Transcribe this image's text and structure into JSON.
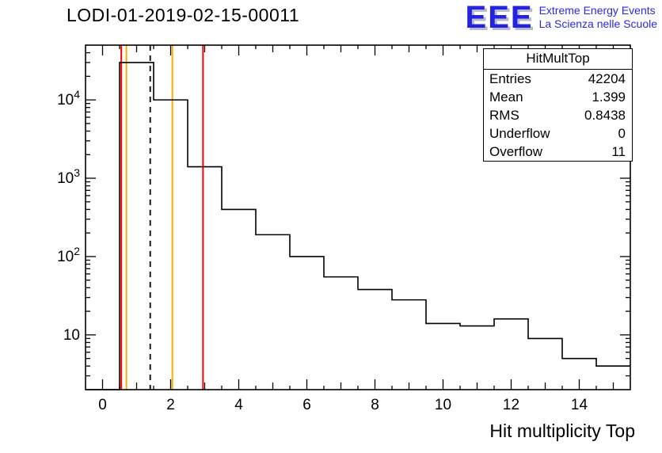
{
  "title": "LODI-01-2019-02-15-00011",
  "xlabel": "Hit multiplicity Top",
  "logo": {
    "eee": "EEE",
    "line1": "Extreme Energy Events",
    "line2": "La Scienza nelle Scuole",
    "color": "#2a2ae0"
  },
  "stats": {
    "header": "HitMultTop",
    "rows": [
      {
        "label": "Entries",
        "value": "42204"
      },
      {
        "label": "Mean",
        "value": "1.399"
      },
      {
        "label": "RMS",
        "value": "0.8438"
      },
      {
        "label": "Underflow",
        "value": "0"
      },
      {
        "label": "Overflow",
        "value": "11"
      }
    ]
  },
  "chart_data": {
    "type": "bar",
    "title": "LODI-01-2019-02-15-00011",
    "xlabel": "Hit multiplicity Top",
    "ylabel": "",
    "yscale": "log",
    "xlim": [
      -0.5,
      15.5
    ],
    "ylim": [
      2,
      50000
    ],
    "bin_width": 1,
    "bin_centers": [
      0,
      1,
      2,
      3,
      4,
      5,
      6,
      7,
      8,
      9,
      10,
      11,
      12,
      13,
      14,
      15
    ],
    "values": [
      0,
      30000,
      10000,
      1400,
      400,
      190,
      100,
      55,
      38,
      28,
      14,
      13,
      16,
      9,
      5,
      4
    ],
    "hist_color": "#000000",
    "x_ticks": {
      "values": [
        0,
        2,
        4,
        6,
        8,
        10,
        12,
        14
      ],
      "labels": [
        "0",
        "2",
        "4",
        "6",
        "8",
        "10",
        "12",
        "14"
      ]
    },
    "y_ticks": {
      "values": [
        10,
        100,
        1000,
        10000
      ],
      "labels": [
        "10",
        "10^2",
        "10^3",
        "10^4"
      ]
    },
    "vlines": [
      {
        "x": 0.55,
        "color": "#ff0000",
        "style": "solid"
      },
      {
        "x": 0.7,
        "color": "#ffaa00",
        "style": "solid"
      },
      {
        "x": 1.4,
        "color": "#000000",
        "style": "dashed"
      },
      {
        "x": 2.05,
        "color": "#ffaa00",
        "style": "solid"
      },
      {
        "x": 2.95,
        "color": "#ff0000",
        "style": "solid"
      }
    ],
    "grid": false,
    "legend": "none"
  }
}
